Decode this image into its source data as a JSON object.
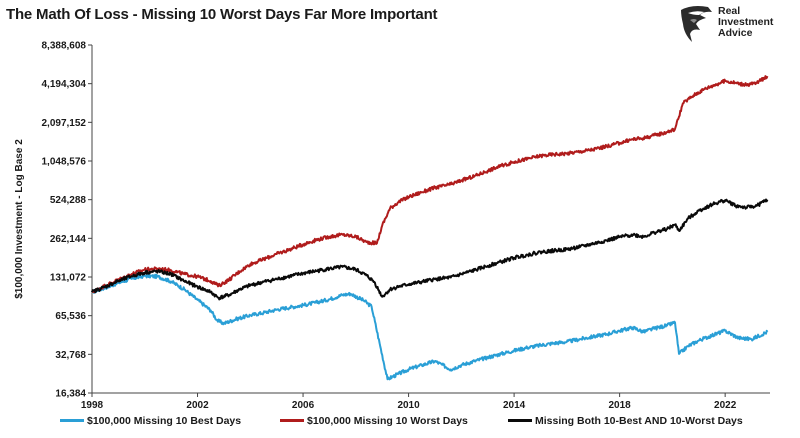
{
  "title": "The Math Of Loss - Missing 10 Worst Days Far More Important",
  "logo": {
    "icon": "eagle-head-icon",
    "line1": "Real",
    "line2": "Investment",
    "line3": "Advice"
  },
  "chart_data": {
    "type": "line",
    "title": "The Math Of Loss - Missing 10 Worst Days Far More Important",
    "xlabel": "",
    "ylabel": "$100,000 Investment - Log Base 2",
    "y_scale": "log2",
    "ylim": [
      16384,
      8388608
    ],
    "xlim": [
      1998,
      2023.7
    ],
    "grid": false,
    "legend_position": "bottom",
    "x_ticks": [
      1998,
      2002,
      2006,
      2010,
      2014,
      2018,
      2022
    ],
    "x_tick_labels": [
      "1998",
      "2002",
      "2006",
      "2010",
      "2014",
      "2018",
      "2022"
    ],
    "y_ticks": [
      16384,
      32768,
      65536,
      131072,
      262144,
      524288,
      1048576,
      2097152,
      4194304,
      8388608
    ],
    "y_tick_labels": [
      "16,384",
      "32,768",
      "65,536",
      "131,072",
      "262,144",
      "524,288",
      "1,048,576",
      "2,097,152",
      "4,194,304",
      "8,388,608"
    ],
    "series": [
      {
        "name": "$100,000 Missing 10 Best Days",
        "color": "#2a9fd6",
        "x": [
          1998.0,
          1998.5,
          1999.0,
          1999.5,
          2000.0,
          2000.5,
          2001.0,
          2001.5,
          2002.0,
          2002.5,
          2002.75,
          2003.0,
          2003.5,
          2004.0,
          2004.5,
          2005.0,
          2005.5,
          2006.0,
          2006.5,
          2007.0,
          2007.5,
          2007.8,
          2008.3,
          2008.6,
          2008.9,
          2009.2,
          2009.6,
          2010.0,
          2010.5,
          2011.0,
          2011.6,
          2012.0,
          2012.5,
          2013.0,
          2013.5,
          2014.0,
          2014.5,
          2015.0,
          2015.5,
          2016.0,
          2016.5,
          2017.0,
          2017.5,
          2018.0,
          2018.5,
          2018.9,
          2019.3,
          2019.8,
          2020.1,
          2020.25,
          2020.6,
          2021.0,
          2021.5,
          2022.0,
          2022.5,
          2023.0,
          2023.6
        ],
        "values": [
          100000,
          108000,
          118000,
          127000,
          134000,
          132000,
          121000,
          105000,
          87000,
          72000,
          60000,
          57000,
          62000,
          66000,
          69000,
          73000,
          76000,
          79000,
          83000,
          88000,
          95000,
          97000,
          86000,
          77000,
          40000,
          21000,
          23000,
          25000,
          27000,
          29000,
          25000,
          27000,
          29000,
          31000,
          33000,
          35000,
          37000,
          38500,
          40000,
          41000,
          43000,
          45000,
          47000,
          50000,
          53000,
          49000,
          52000,
          55000,
          58000,
          33000,
          38000,
          42000,
          46000,
          50000,
          44000,
          43000,
          49000
        ]
      },
      {
        "name": "$100,000 Missing 10 Worst Days",
        "color": "#b01c1c",
        "x": [
          1998.0,
          1998.5,
          1999.0,
          1999.5,
          2000.0,
          2000.5,
          2001.0,
          2001.5,
          2002.0,
          2002.5,
          2002.8,
          2003.2,
          2003.6,
          2004.0,
          2004.5,
          2005.0,
          2005.5,
          2006.0,
          2006.5,
          2007.0,
          2007.5,
          2008.0,
          2008.4,
          2008.8,
          2009.0,
          2009.3,
          2009.6,
          2010.0,
          2010.5,
          2011.0,
          2011.6,
          2012.0,
          2012.5,
          2013.0,
          2013.5,
          2014.0,
          2014.5,
          2015.0,
          2015.5,
          2016.0,
          2016.5,
          2017.0,
          2017.5,
          2018.0,
          2018.5,
          2018.9,
          2019.3,
          2019.8,
          2020.1,
          2020.4,
          2020.8,
          2021.2,
          2021.6,
          2022.0,
          2022.4,
          2022.8,
          2023.2,
          2023.6
        ],
        "values": [
          100000,
          112000,
          125000,
          138000,
          150000,
          152000,
          148000,
          138000,
          132000,
          122000,
          112000,
          125000,
          145000,
          165000,
          180000,
          198000,
          215000,
          235000,
          255000,
          270000,
          280000,
          270000,
          245000,
          240000,
          330000,
          450000,
          500000,
          550000,
          600000,
          650000,
          690000,
          740000,
          800000,
          880000,
          960000,
          1030000,
          1090000,
          1150000,
          1180000,
          1200000,
          1240000,
          1290000,
          1360000,
          1450000,
          1550000,
          1580000,
          1660000,
          1760000,
          1860000,
          2950000,
          3400000,
          3800000,
          4100000,
          4400000,
          4250000,
          4100000,
          4250000,
          4800000
        ]
      },
      {
        "name": "Missing Both 10-Best AND 10-Worst Days",
        "color": "#0a0a0a",
        "x": [
          1998.0,
          1998.5,
          1999.0,
          1999.5,
          2000.0,
          2000.5,
          2001.0,
          2001.5,
          2002.0,
          2002.5,
          2002.8,
          2003.2,
          2003.6,
          2004.0,
          2004.5,
          2005.0,
          2005.5,
          2006.0,
          2006.5,
          2007.0,
          2007.5,
          2008.0,
          2008.4,
          2008.7,
          2009.0,
          2009.3,
          2009.6,
          2010.0,
          2010.5,
          2011.0,
          2011.6,
          2012.0,
          2012.5,
          2013.0,
          2013.5,
          2014.0,
          2014.5,
          2015.0,
          2015.5,
          2016.0,
          2016.5,
          2017.0,
          2017.5,
          2018.0,
          2018.5,
          2018.9,
          2019.3,
          2019.8,
          2020.1,
          2020.25,
          2020.6,
          2021.0,
          2021.5,
          2022.0,
          2022.4,
          2022.8,
          2023.2,
          2023.6
        ],
        "values": [
          100000,
          110000,
          122000,
          133000,
          142000,
          145000,
          138000,
          122000,
          110000,
          100000,
          90000,
          95000,
          105000,
          113000,
          120000,
          126000,
          133000,
          140000,
          146000,
          152000,
          157000,
          150000,
          135000,
          120000,
          92000,
          105000,
          110000,
          115000,
          120000,
          126000,
          130000,
          138000,
          148000,
          160000,
          172000,
          185000,
          195000,
          205000,
          210000,
          215000,
          225000,
          238000,
          252000,
          268000,
          280000,
          270000,
          290000,
          310000,
          335000,
          300000,
          375000,
          430000,
          480000,
          520000,
          470000,
          455000,
          470000,
          525000
        ]
      }
    ]
  }
}
